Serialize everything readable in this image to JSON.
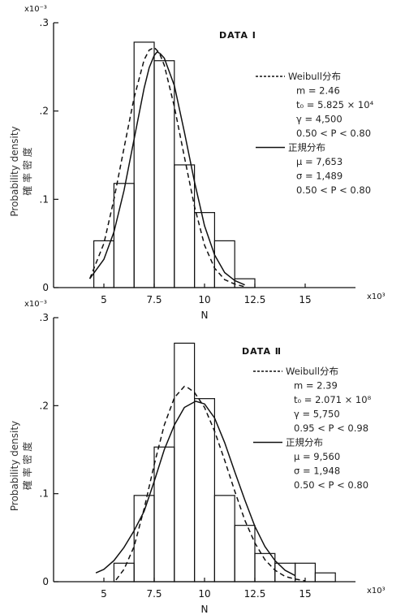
{
  "chart_data": [
    {
      "type": "bar",
      "title": "DATA Ⅰ",
      "xlabel": "N",
      "x_multiplier_label": "x10³",
      "ylabel": "Probability density",
      "ylabel_jp": "確 率 密 度",
      "y_multiplier_label": "x10⁻³",
      "xlim": [
        2.5,
        17.5
      ],
      "ylim": [
        0,
        0.3
      ],
      "xticks": [
        5,
        7.5,
        10,
        12.5,
        15
      ],
      "xtick_labels": [
        "5",
        "7.5",
        "10",
        "12.5",
        "15"
      ],
      "yticks": [
        0,
        0.1,
        0.2,
        0.3
      ],
      "ytick_labels": [
        "0",
        ".1",
        ".2",
        ".3"
      ],
      "histogram": {
        "bin_edges": [
          4.5,
          5.5,
          6.5,
          7.5,
          8.5,
          9.5,
          10.5,
          11.5,
          12.5
        ],
        "values": [
          0.053,
          0.118,
          0.278,
          0.257,
          0.139,
          0.085,
          0.053,
          0.01
        ]
      },
      "series": [
        {
          "name": "Weibull分布",
          "style": "dashed",
          "x": [
            4.3,
            5,
            5.5,
            6,
            6.5,
            7,
            7.25,
            7.5,
            7.75,
            8,
            8.5,
            9,
            9.5,
            10,
            10.5,
            11,
            11.5,
            12
          ],
          "y": [
            0.01,
            0.05,
            0.1,
            0.158,
            0.215,
            0.258,
            0.269,
            0.272,
            0.266,
            0.252,
            0.205,
            0.148,
            0.092,
            0.048,
            0.022,
            0.009,
            0.004,
            0.001
          ]
        },
        {
          "name": "正規分布",
          "style": "solid",
          "x": [
            4.3,
            5,
            5.5,
            6,
            6.5,
            7,
            7.25,
            7.5,
            7.65,
            7.8,
            8,
            8.5,
            9,
            9.5,
            10,
            10.5,
            11,
            11.5,
            12
          ],
          "y": [
            0.01,
            0.032,
            0.063,
            0.11,
            0.168,
            0.226,
            0.249,
            0.263,
            0.267,
            0.265,
            0.26,
            0.229,
            0.176,
            0.12,
            0.07,
            0.037,
            0.017,
            0.008,
            0.003
          ]
        }
      ],
      "legend": [
        {
          "style": "dashed",
          "label": "Weibull分布",
          "params": [
            "m = 2.46",
            "t₀ = 5.825 × 10⁴",
            "γ = 4,500",
            "0.50 < P < 0.80"
          ]
        },
        {
          "style": "solid",
          "label": "正規分布",
          "params": [
            "μ = 7,653",
            "σ = 1,489",
            "0.50 < P < 0.80"
          ]
        }
      ]
    },
    {
      "type": "bar",
      "title": "DATA Ⅱ",
      "xlabel": "N",
      "x_multiplier_label": "x10³",
      "ylabel": "Probability density",
      "ylabel_jp": "確 率 密 度",
      "y_multiplier_label": "x10⁻³",
      "xlim": [
        2.5,
        17.5
      ],
      "ylim": [
        0,
        0.3
      ],
      "xticks": [
        5,
        7.5,
        10,
        12.5,
        15
      ],
      "xtick_labels": [
        "5",
        "7.5",
        "10",
        "12.5",
        "15"
      ],
      "yticks": [
        0,
        0.1,
        0.2,
        0.3
      ],
      "ytick_labels": [
        "0",
        ".1",
        ".2",
        ".3"
      ],
      "histogram": {
        "bin_edges": [
          5.5,
          6.5,
          7.5,
          8.5,
          9.5,
          10.5,
          11.5,
          12.5,
          13.5,
          14.5,
          15.5,
          16.5
        ],
        "values": [
          0.021,
          0.098,
          0.153,
          0.271,
          0.208,
          0.098,
          0.064,
          0.032,
          0.021,
          0.021,
          0.01
        ]
      },
      "series": [
        {
          "name": "Weibull分布",
          "style": "dashed",
          "x": [
            5.6,
            6,
            6.5,
            7,
            7.5,
            8,
            8.5,
            9,
            9.2,
            9.5,
            10,
            10.5,
            11,
            11.5,
            12,
            12.5,
            13,
            13.5,
            14,
            14.5,
            15
          ],
          "y": [
            0.002,
            0.014,
            0.04,
            0.083,
            0.133,
            0.178,
            0.209,
            0.222,
            0.22,
            0.215,
            0.198,
            0.171,
            0.138,
            0.103,
            0.07,
            0.044,
            0.025,
            0.013,
            0.006,
            0.003,
            0.001
          ]
        },
        {
          "name": "正規分布",
          "style": "solid",
          "x": [
            4.6,
            5,
            5.5,
            6,
            6.5,
            7,
            7.5,
            8,
            8.5,
            9,
            9.56,
            10,
            10.5,
            11,
            11.5,
            12,
            12.5,
            13,
            13.5,
            14,
            14.5
          ],
          "y": [
            0.01,
            0.014,
            0.024,
            0.039,
            0.058,
            0.08,
            0.114,
            0.15,
            0.178,
            0.198,
            0.205,
            0.202,
            0.186,
            0.158,
            0.125,
            0.093,
            0.063,
            0.04,
            0.024,
            0.013,
            0.007
          ]
        }
      ],
      "legend": [
        {
          "style": "dashed",
          "label": "Weibull分布",
          "params": [
            "m = 2.39",
            "t₀ = 2.071 × 10⁸",
            "γ = 5,750",
            "0.95 < P < 0.98"
          ]
        },
        {
          "style": "solid",
          "label": "正規分布",
          "params": [
            "μ = 9,560",
            "σ = 1,948",
            "0.50 < P < 0.80"
          ]
        }
      ]
    }
  ]
}
